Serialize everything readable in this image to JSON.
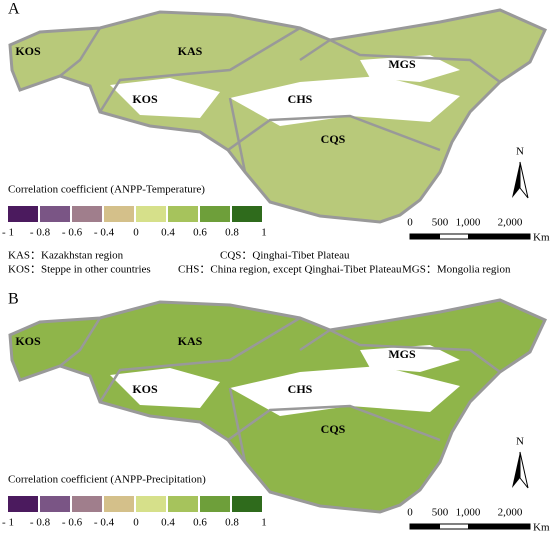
{
  "panels": [
    {
      "label": "A",
      "regions": [
        "KOS",
        "KAS",
        "MGS",
        "KOS",
        "CHS",
        "CQS"
      ],
      "legend": {
        "title": "Correlation coefficient (ANPP-Temperature)",
        "ticks": [
          "- 1",
          "- 0.8",
          "- 0.6",
          "- 0.4",
          "0",
          "0.4",
          "0.6",
          "0.8",
          "1"
        ],
        "colors": [
          "#4b1a5e",
          "#7a5585",
          "#a07e8c",
          "#d4c08a",
          "#d6e08a",
          "#a6c35c",
          "#6e9f3a",
          "#2f6b1c"
        ]
      },
      "scale": {
        "ticks": [
          "0",
          "500",
          "1,000",
          "2,000"
        ],
        "unit": "Km"
      },
      "north": "N"
    },
    {
      "label": "B",
      "regions": [
        "KOS",
        "KAS",
        "MGS",
        "KOS",
        "CHS",
        "CQS"
      ],
      "legend": {
        "title": "Correlation coefficient (ANPP-Precipitation)",
        "ticks": [
          "- 1",
          "- 0.8",
          "- 0.6",
          "- 0.4",
          "0",
          "0.4",
          "0.6",
          "0.8",
          "1"
        ],
        "colors": [
          "#4b1a5e",
          "#7a5585",
          "#a07e8c",
          "#d4c08a",
          "#d6e08a",
          "#a6c35c",
          "#6e9f3a",
          "#2f6b1c"
        ]
      },
      "scale": {
        "ticks": [
          "0",
          "500",
          "1,000",
          "2,000"
        ],
        "unit": "Km"
      },
      "north": "N"
    }
  ],
  "abbreviations": [
    "KAS：Kazakhstan  region",
    "CQS：Qinghai-Tibet Plateau",
    "KOS：Steppe in other countries",
    "CHS：China region, except Qinghai-Tibet Plateau",
    "MGS：Mongolia region"
  ]
}
